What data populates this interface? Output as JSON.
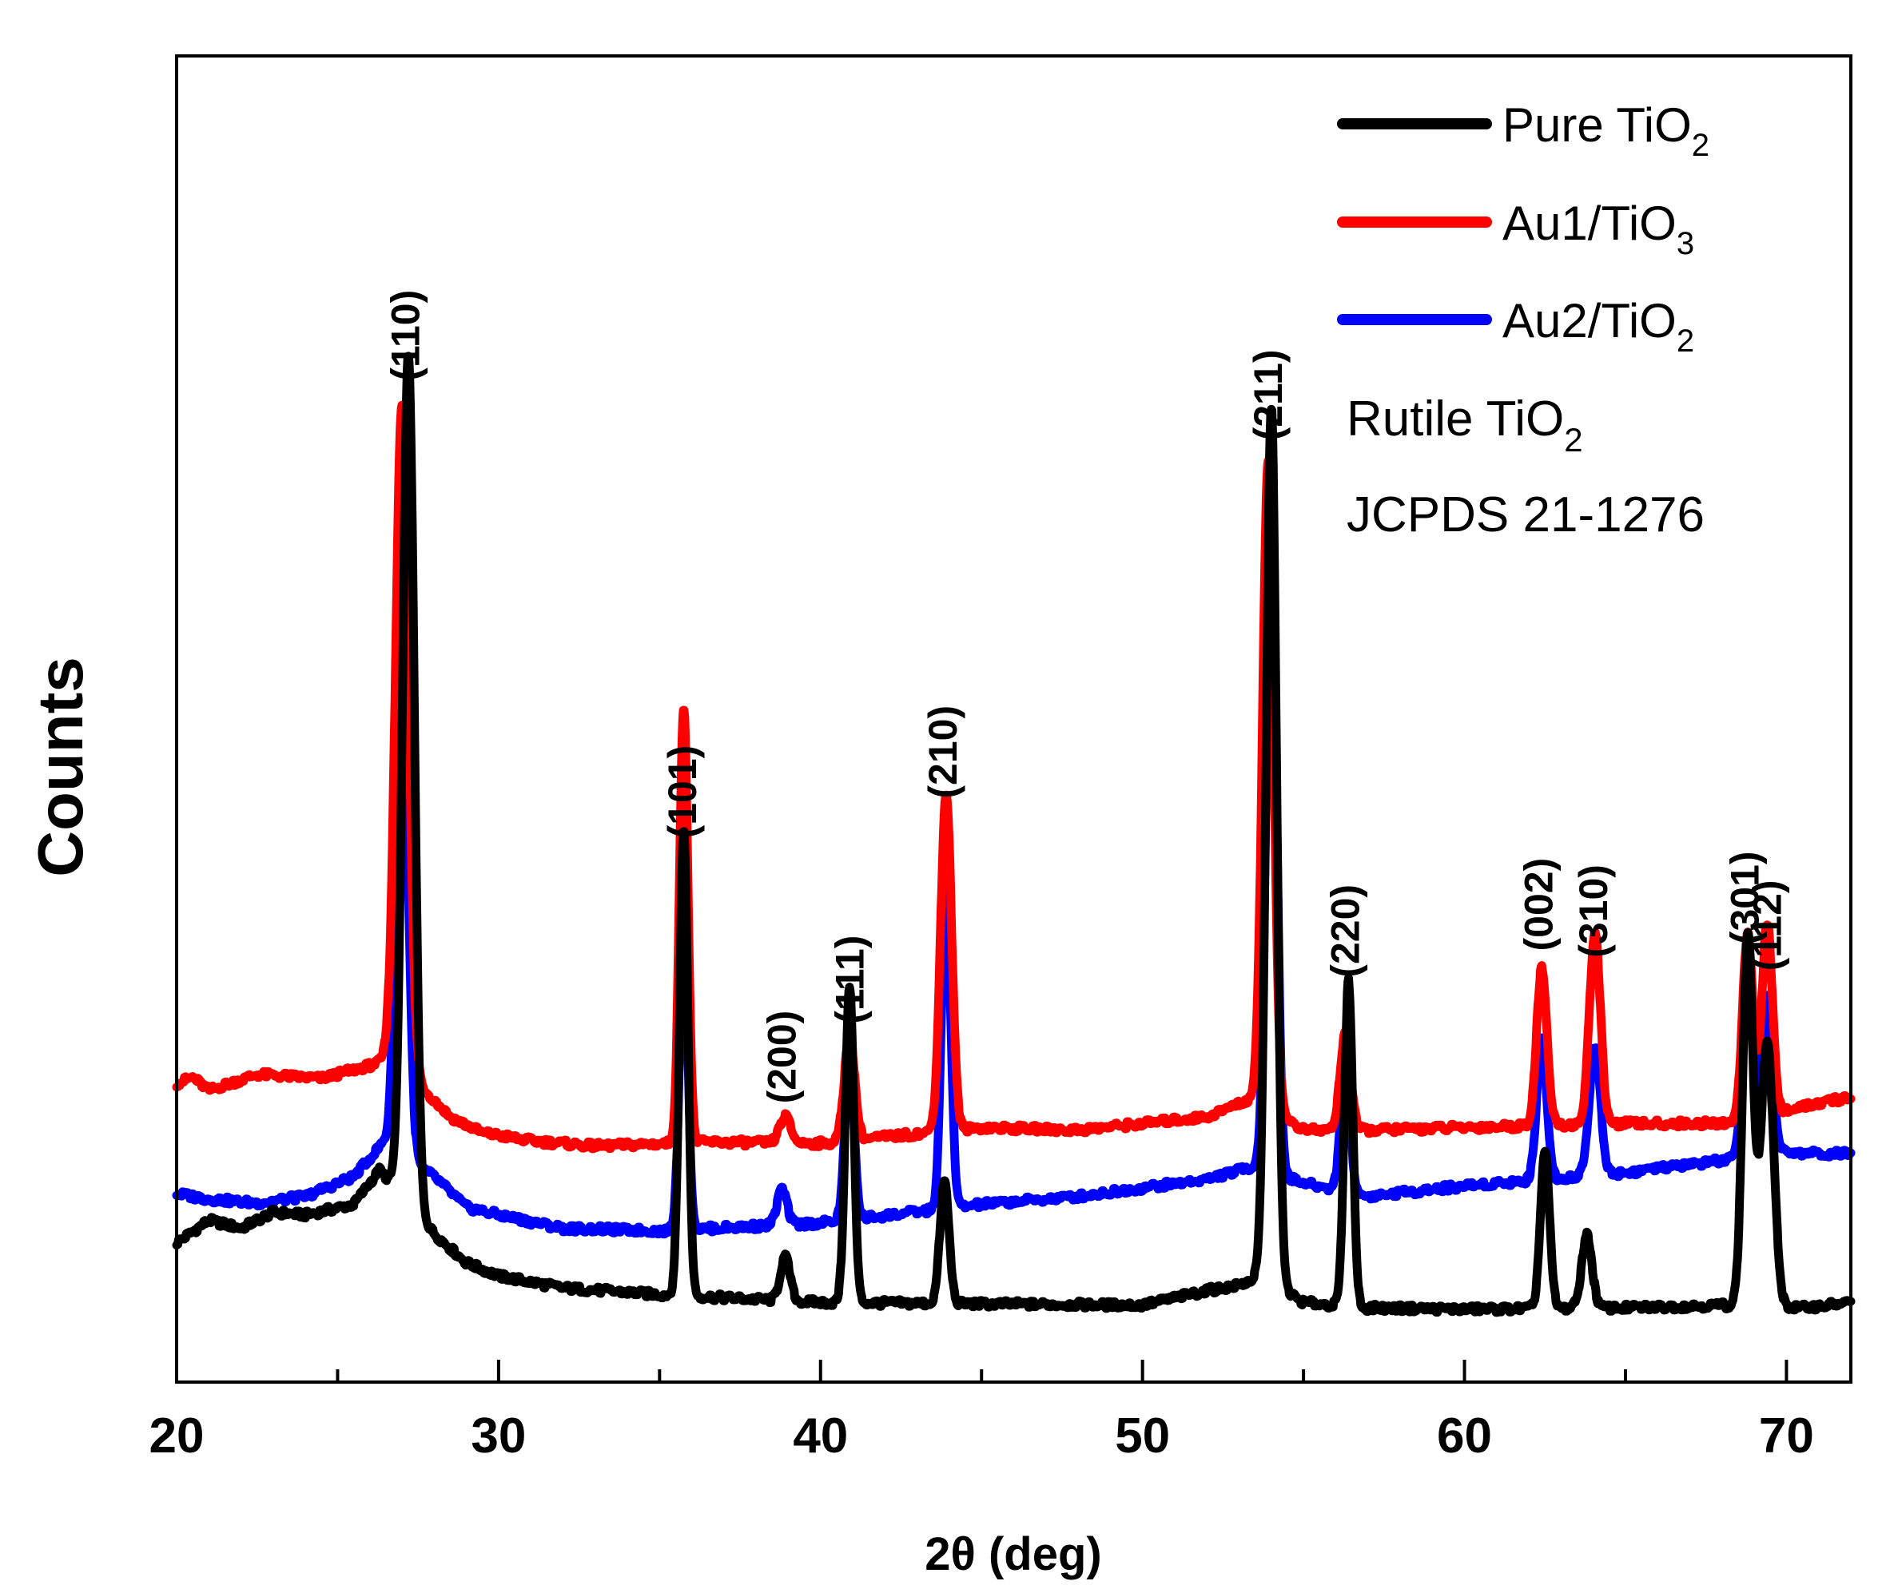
{
  "chart_data": {
    "type": "line",
    "xlabel": "2θ (deg)",
    "ylabel": "Counts",
    "xlim": [
      20,
      72
    ],
    "ylim": [
      0,
      100
    ],
    "x_ticks": [
      20,
      30,
      40,
      50,
      60,
      70
    ],
    "x_tick_labels": [
      "20",
      "30",
      "40",
      "50",
      "60",
      "70"
    ],
    "x_minor_ticks": [
      25,
      35,
      45,
      55,
      65
    ],
    "grid": false,
    "legend_position": "top-right",
    "annotation": [
      "Rutile TiO",
      "2",
      "JCPDS 21-1276"
    ],
    "peak_labels": [
      {
        "text": "(110)",
        "x": 27.2,
        "y": 75.5
      },
      {
        "text": "(101)",
        "x": 35.8,
        "y": 41.0
      },
      {
        "text": "(200)",
        "x": 38.9,
        "y": 21.0
      },
      {
        "text": "(111)",
        "x": 41.0,
        "y": 27.0
      },
      {
        "text": "(210)",
        "x": 43.9,
        "y": 44.0
      },
      {
        "text": "(211)",
        "x": 54.0,
        "y": 71.0
      },
      {
        "text": "(220)",
        "x": 56.4,
        "y": 30.5
      },
      {
        "text": "(002)",
        "x": 62.4,
        "y": 32.5
      },
      {
        "text": "(310)",
        "x": 64.1,
        "y": 32.0
      },
      {
        "text": "(301)",
        "x": 68.8,
        "y": 33.0
      },
      {
        "text": "(112)",
        "x": 69.5,
        "y": 31.0
      }
    ],
    "series": [
      {
        "name": "Pure TiO2",
        "label_main": "Pure TiO",
        "label_sub": "2",
        "color": "#000000",
        "baseline": [
          [
            20,
            10.5
          ],
          [
            21,
            12.2
          ],
          [
            22,
            11.6
          ],
          [
            23,
            12.8
          ],
          [
            24,
            12.6
          ],
          [
            25.5,
            13.4
          ],
          [
            26.3,
            16.0
          ],
          [
            28.0,
            11.2
          ],
          [
            29.0,
            9.0
          ],
          [
            30,
            8.0
          ],
          [
            32,
            7.1
          ],
          [
            35,
            6.6
          ],
          [
            40,
            6.0
          ],
          [
            45,
            5.9
          ],
          [
            50,
            5.8
          ],
          [
            52,
            6.9
          ],
          [
            53,
            7.3
          ],
          [
            53.7,
            8.0
          ],
          [
            55,
            6.0
          ],
          [
            57,
            5.6
          ],
          [
            60,
            5.5
          ],
          [
            65,
            5.6
          ],
          [
            68,
            5.8
          ],
          [
            70.5,
            5.6
          ],
          [
            72,
            6.0
          ]
        ],
        "peaks": [
          [
            27.2,
            64,
            0.18
          ],
          [
            35.75,
            35,
            0.13
          ],
          [
            38.9,
            3.3,
            0.15
          ],
          [
            40.9,
            24,
            0.13
          ],
          [
            43.85,
            9.2,
            0.14
          ],
          [
            54.0,
            66,
            0.16
          ],
          [
            56.4,
            24.5,
            0.13
          ],
          [
            62.5,
            11.8,
            0.14
          ],
          [
            63.8,
            5.5,
            0.16
          ],
          [
            68.8,
            28,
            0.16
          ],
          [
            69.4,
            20,
            0.2
          ]
        ]
      },
      {
        "name": "Au1/TiO3",
        "label_main": "Au1/TiO",
        "label_sub": "3",
        "color": "#ff0000",
        "baseline": [
          [
            20,
            22.5
          ],
          [
            20.5,
            23.0
          ],
          [
            21,
            22.0
          ],
          [
            22.5,
            23.2
          ],
          [
            24.5,
            22.9
          ],
          [
            26.5,
            24.2
          ],
          [
            27.5,
            22.5
          ],
          [
            28.5,
            20.0
          ],
          [
            29.5,
            18.8
          ],
          [
            31,
            18.2
          ],
          [
            33,
            17.8
          ],
          [
            36.5,
            18.1
          ],
          [
            40,
            18.0
          ],
          [
            45,
            19.2
          ],
          [
            48,
            19.0
          ],
          [
            52,
            20.0
          ],
          [
            53.5,
            21.5
          ],
          [
            55,
            19.0
          ],
          [
            57,
            19.0
          ],
          [
            60,
            19.2
          ],
          [
            65,
            19.5
          ],
          [
            68,
            19.5
          ],
          [
            70,
            20.5
          ],
          [
            72,
            21.5
          ]
        ],
        "peaks": [
          [
            27.0,
            50.5,
            0.2
          ],
          [
            35.75,
            33,
            0.13
          ],
          [
            38.9,
            2.0,
            0.17
          ],
          [
            40.9,
            8.0,
            0.16
          ],
          [
            43.9,
            25.5,
            0.17
          ],
          [
            53.9,
            48.5,
            0.17
          ],
          [
            56.3,
            7.3,
            0.16
          ],
          [
            62.4,
            11.8,
            0.16
          ],
          [
            64.05,
            14.4,
            0.17
          ],
          [
            68.8,
            13.9,
            0.16
          ],
          [
            69.4,
            14.5,
            0.16
          ]
        ]
      },
      {
        "name": "Au2/TiO2",
        "label_main": "Au2/TiO",
        "label_sub": "2",
        "color": "#0000ff",
        "baseline": [
          [
            20,
            14.2
          ],
          [
            21,
            13.8
          ],
          [
            22.5,
            13.5
          ],
          [
            24,
            14.0
          ],
          [
            25.5,
            15.5
          ],
          [
            26.4,
            18.0
          ],
          [
            28.0,
            15.5
          ],
          [
            29.0,
            13.2
          ],
          [
            30,
            12.6
          ],
          [
            32,
            11.6
          ],
          [
            35,
            11.4
          ],
          [
            40,
            12.0
          ],
          [
            45,
            13.4
          ],
          [
            48,
            14.0
          ],
          [
            52,
            15.3
          ],
          [
            53.5,
            16.3
          ],
          [
            55,
            15.0
          ],
          [
            57,
            14.0
          ],
          [
            60,
            14.8
          ],
          [
            65,
            15.8
          ],
          [
            68,
            16.7
          ],
          [
            70,
            17.3
          ],
          [
            72,
            17.2
          ]
        ],
        "peaks": [
          [
            27.0,
            39.5,
            0.18
          ],
          [
            35.75,
            22,
            0.13
          ],
          [
            38.8,
            2.7,
            0.15
          ],
          [
            40.9,
            12.3,
            0.14
          ],
          [
            43.9,
            25,
            0.14
          ],
          [
            54.0,
            48,
            0.16
          ],
          [
            56.3,
            9.0,
            0.15
          ],
          [
            62.4,
            10.8,
            0.15
          ],
          [
            64.05,
            9.8,
            0.17
          ],
          [
            68.8,
            12.5,
            0.16
          ],
          [
            69.4,
            12.0,
            0.17
          ]
        ]
      }
    ]
  }
}
